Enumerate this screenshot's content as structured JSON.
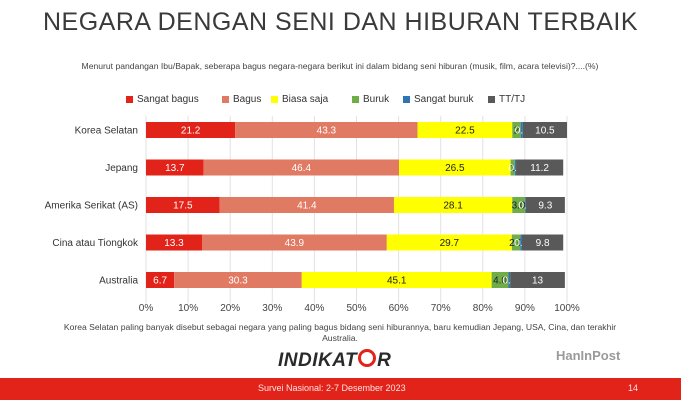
{
  "title": "NEGARA DENGAN SENI DAN HIBURAN TERBAIK",
  "question": "Menurut pandangan Ibu/Bapak, seberapa bagus negara-negara berikut ini dalam bidang seni hiburan (musik, film, acara televisi)?....(%)",
  "note": "Korea Selatan paling banyak disebut sebagai negara yang paling bagus bidang seni hiburannya, baru kemudian Jepang, USA, Cina, dan terakhir Australia.",
  "logo": {
    "part1": "INDIKAT",
    "part2": "R"
  },
  "watermark": "HanInPost",
  "footer": {
    "survey": "Survei Nasional: 2-7 Desember 2023",
    "page": "14"
  },
  "chart_data": {
    "type": "bar",
    "orientation": "horizontal",
    "stacked": true,
    "categories": [
      "Korea Selatan",
      "Jepang",
      "Amerika Serikat (AS)",
      "Cina atau Tiongkok",
      "Australia"
    ],
    "series": [
      {
        "name": "Sangat bagus",
        "color": "#e2231a",
        "values": [
          21.2,
          13.7,
          17.5,
          13.3,
          6.7
        ],
        "labels": [
          "21.2",
          "13.7",
          "17.5",
          "13.3",
          "6.7"
        ]
      },
      {
        "name": "Bagus",
        "color": "#e07a63",
        "values": [
          43.3,
          46.4,
          41.4,
          43.9,
          30.3
        ],
        "labels": [
          "43.3",
          "46.4",
          "41.4",
          "43.9",
          "30.3"
        ]
      },
      {
        "name": "Biasa saja",
        "color": "#ffff00",
        "values": [
          22.5,
          26.5,
          28.1,
          29.7,
          45.1
        ],
        "labels": [
          "22.5",
          "26.5",
          "28.1",
          "29.7",
          "45.1"
        ]
      },
      {
        "name": "Buruk",
        "color": "#70ad47",
        "values": [
          2.0,
          1.0,
          3.0,
          2.0,
          4.0
        ],
        "labels": [
          "2",
          "1",
          "3.0",
          "2.0",
          "4.0"
        ]
      },
      {
        "name": "Sangat buruk",
        "color": "#2e75b6",
        "values": [
          0.5,
          0.3,
          0.2,
          0.4,
          0.4
        ],
        "labels": [
          "0.5",
          "0.3",
          "0.2",
          "0.4",
          "0.4"
        ]
      },
      {
        "name": "TT/TJ",
        "color": "#595959",
        "values": [
          10.5,
          11.2,
          9.3,
          9.8,
          13.0
        ],
        "labels": [
          "10.5",
          "11.2",
          "9.3",
          "9.8",
          "13"
        ]
      }
    ],
    "xlim": [
      0,
      100
    ],
    "xticks": [
      "0%",
      "10%",
      "20%",
      "30%",
      "40%",
      "50%",
      "60%",
      "70%",
      "80%",
      "90%",
      "100%"
    ],
    "grid": true,
    "legend": "top"
  }
}
